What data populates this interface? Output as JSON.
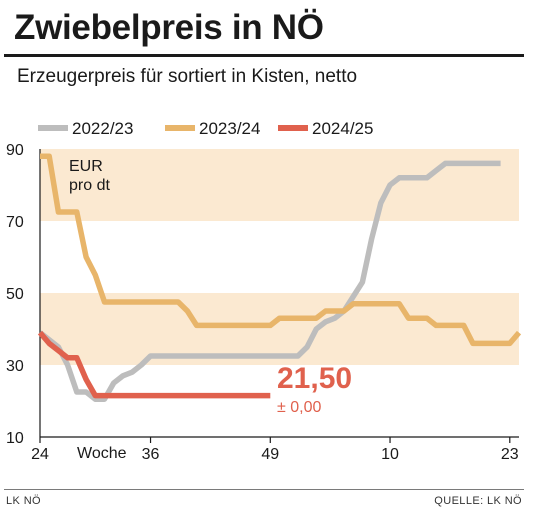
{
  "header": {
    "title": "Zwiebelpreis in NÖ",
    "subtitle": "Erzeugerpreis für sortiert in Kisten, netto"
  },
  "footer": {
    "left": "LK NÖ",
    "right": "QUELLE: LK NÖ"
  },
  "chart_data": {
    "type": "line",
    "unit_label": [
      "EUR",
      "pro dt"
    ],
    "xlabel": "Woche",
    "x_tick_labels": [
      "24",
      "36",
      "49",
      "10",
      "23"
    ],
    "x_tick_weeks": [
      0,
      12,
      25,
      38,
      51
    ],
    "ylim": [
      10,
      90
    ],
    "y_ticks": [
      10,
      30,
      50,
      70,
      90
    ],
    "bands": [
      [
        70,
        90
      ],
      [
        30,
        50
      ]
    ],
    "grid": false,
    "legend_position": "top",
    "series": [
      {
        "name": "2022/23",
        "color": "#bdbdbd",
        "points": [
          [
            0,
            39
          ],
          [
            1,
            37
          ],
          [
            2,
            35
          ],
          [
            3,
            30
          ],
          [
            4,
            22.5
          ],
          [
            5,
            22.5
          ],
          [
            6,
            20.5
          ],
          [
            7,
            20.5
          ],
          [
            8,
            25
          ],
          [
            9,
            27
          ],
          [
            10,
            28
          ],
          [
            11,
            30
          ],
          [
            12,
            32.5
          ],
          [
            13,
            32.5
          ],
          [
            14,
            32.5
          ],
          [
            15,
            32.5
          ],
          [
            16,
            32.5
          ],
          [
            17,
            32.5
          ],
          [
            18,
            32.5
          ],
          [
            19,
            32.5
          ],
          [
            20,
            32.5
          ],
          [
            21,
            32.5
          ],
          [
            22,
            32.5
          ],
          [
            23,
            32.5
          ],
          [
            24,
            32.5
          ],
          [
            25,
            32.5
          ],
          [
            26,
            32.5
          ],
          [
            27,
            32.5
          ],
          [
            28,
            32.5
          ],
          [
            29,
            35
          ],
          [
            30,
            40
          ],
          [
            31,
            42
          ],
          [
            32,
            43
          ],
          [
            33,
            45
          ],
          [
            34,
            49
          ],
          [
            35,
            53
          ],
          [
            36,
            65
          ],
          [
            37,
            75
          ],
          [
            38,
            80
          ],
          [
            39,
            82
          ],
          [
            40,
            82
          ],
          [
            41,
            82
          ],
          [
            42,
            82
          ],
          [
            43,
            84
          ],
          [
            44,
            86
          ],
          [
            45,
            86
          ],
          [
            46,
            86
          ],
          [
            47,
            86
          ],
          [
            48,
            86
          ],
          [
            49,
            86
          ],
          [
            50,
            86
          ]
        ]
      },
      {
        "name": "2023/24",
        "color": "#e8b56a",
        "points": [
          [
            0,
            88
          ],
          [
            1,
            88
          ],
          [
            2,
            72.5
          ],
          [
            3,
            72.5
          ],
          [
            4,
            72.5
          ],
          [
            5,
            60
          ],
          [
            6,
            55
          ],
          [
            7,
            47.5
          ],
          [
            8,
            47.5
          ],
          [
            9,
            47.5
          ],
          [
            10,
            47.5
          ],
          [
            11,
            47.5
          ],
          [
            12,
            47.5
          ],
          [
            13,
            47.5
          ],
          [
            14,
            47.5
          ],
          [
            15,
            47.5
          ],
          [
            16,
            45
          ],
          [
            17,
            41
          ],
          [
            18,
            41
          ],
          [
            19,
            41
          ],
          [
            20,
            41
          ],
          [
            21,
            41
          ],
          [
            22,
            41
          ],
          [
            23,
            41
          ],
          [
            24,
            41
          ],
          [
            25,
            41
          ],
          [
            26,
            43
          ],
          [
            27,
            43
          ],
          [
            28,
            43
          ],
          [
            29,
            43
          ],
          [
            30,
            43
          ],
          [
            31,
            45
          ],
          [
            32,
            45
          ],
          [
            33,
            45
          ],
          [
            34,
            47
          ],
          [
            35,
            47
          ],
          [
            36,
            47
          ],
          [
            37,
            47
          ],
          [
            38,
            47
          ],
          [
            39,
            47
          ],
          [
            40,
            43
          ],
          [
            41,
            43
          ],
          [
            42,
            43
          ],
          [
            43,
            41
          ],
          [
            44,
            41
          ],
          [
            45,
            41
          ],
          [
            46,
            41
          ],
          [
            47,
            36
          ],
          [
            48,
            36
          ],
          [
            49,
            36
          ],
          [
            50,
            36
          ],
          [
            51,
            36
          ],
          [
            52,
            39
          ]
        ]
      },
      {
        "name": "2024/25",
        "color": "#e0614d",
        "points": [
          [
            0,
            39
          ],
          [
            1,
            36
          ],
          [
            2,
            34
          ],
          [
            3,
            32
          ],
          [
            4,
            32
          ],
          [
            5,
            26
          ],
          [
            6,
            21.5
          ],
          [
            7,
            21.5
          ],
          [
            8,
            21.5
          ],
          [
            9,
            21.5
          ],
          [
            10,
            21.5
          ],
          [
            11,
            21.5
          ],
          [
            12,
            21.5
          ],
          [
            13,
            21.5
          ],
          [
            14,
            21.5
          ],
          [
            15,
            21.5
          ],
          [
            16,
            21.5
          ],
          [
            17,
            21.5
          ],
          [
            18,
            21.5
          ],
          [
            19,
            21.5
          ],
          [
            20,
            21.5
          ],
          [
            21,
            21.5
          ],
          [
            22,
            21.5
          ],
          [
            23,
            21.5
          ],
          [
            24,
            21.5
          ],
          [
            25,
            21.5
          ]
        ]
      }
    ],
    "annotation": {
      "value_label": "21,50",
      "change_label": "± 0,00",
      "color": "#e0614d"
    }
  }
}
